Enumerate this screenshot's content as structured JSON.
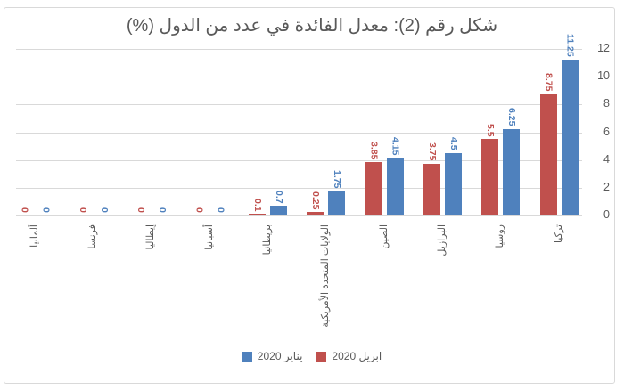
{
  "title": "شكل رقم (2): معدل الفائدة في عدد من الدول (%)",
  "chart_data": {
    "type": "bar",
    "rtl": true,
    "title": "شكل رقم (2): معدل الفائدة في عدد من الدول (%)",
    "categories": [
      "ألمانيا",
      "فرنسا",
      "إيطاليا",
      "أسبانيا",
      "بريطانيا",
      "الولايات المتحدة الأمريكية",
      "الصين",
      "البرازيل",
      "روسيا",
      "تركيا"
    ],
    "series": [
      {
        "name": "ابريل 2020",
        "color": "#C0504D",
        "values": [
          0,
          0,
          0,
          0,
          0.1,
          0.25,
          3.85,
          3.75,
          5.5,
          8.75
        ],
        "labels": [
          "0",
          "0",
          "0",
          "0",
          "0.1",
          "0.25",
          "3.85",
          "3.75",
          "5.5",
          "8.75"
        ]
      },
      {
        "name": "يناير 2020",
        "color": "#4F81BD",
        "values": [
          0,
          0,
          0,
          0,
          0.7,
          1.75,
          4.15,
          4.5,
          6.25,
          11.25
        ],
        "labels": [
          "0",
          "0",
          "0",
          "0",
          "0.7",
          "1.75",
          "4.15",
          "4.5",
          "6.25",
          "11.25"
        ]
      }
    ],
    "y_ticks": [
      0,
      2,
      4,
      6,
      8,
      10,
      12
    ],
    "ylim": [
      0,
      12
    ],
    "grid": true,
    "data_labels_rotated": true,
    "legend_position": "bottom"
  },
  "legend": {
    "items": [
      {
        "label": "يناير 2020",
        "color": "#4F81BD"
      },
      {
        "label": "ابريل 2020",
        "color": "#C0504D"
      }
    ]
  },
  "colors": {
    "april_red": "#C0504D",
    "january_blue": "#4F81BD",
    "grid": "#D9D9D9",
    "text_gray": "#595959"
  }
}
